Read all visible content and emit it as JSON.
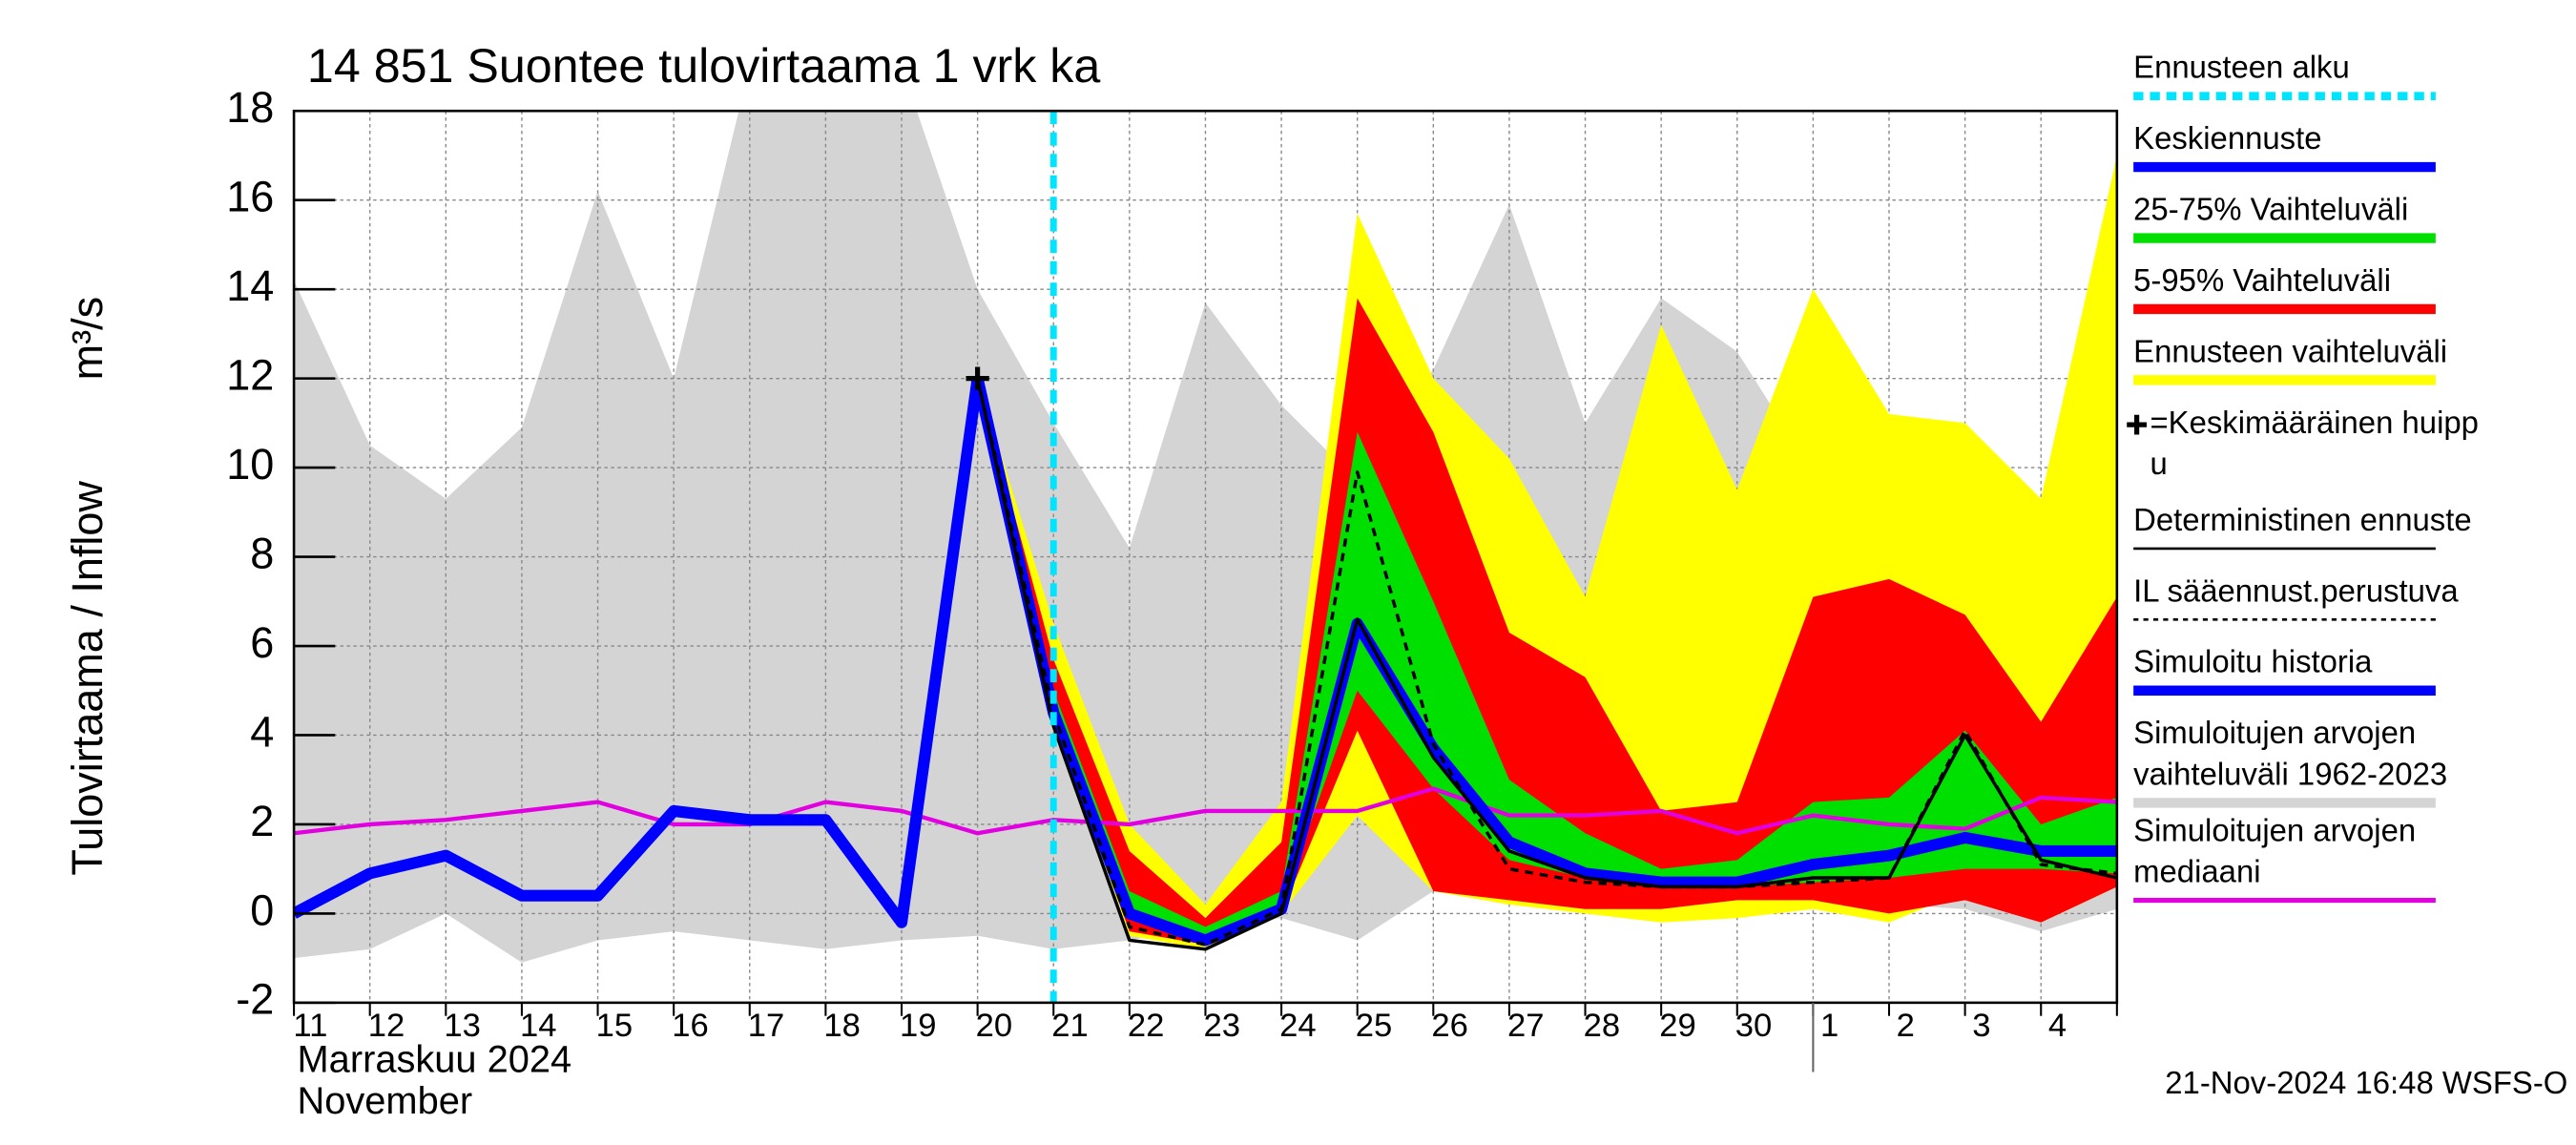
{
  "chart_data": {
    "type": "hydrograph",
    "title": "14 851 Suontee tulovirtaama 1 vrk ka",
    "y_label": "Tulovirtaama / Inflow",
    "y_unit": "m³/s",
    "month_label_fi": "Marraskuu 2024",
    "month_label_en": "November",
    "timestamp": "21-Nov-2024 16:48 WSFS-O",
    "categories": [
      "11",
      "12",
      "13",
      "14",
      "15",
      "16",
      "17",
      "18",
      "19",
      "20",
      "21",
      "22",
      "23",
      "24",
      "25",
      "26",
      "27",
      "28",
      "29",
      "30",
      "1",
      "2",
      "3",
      "4",
      null
    ],
    "month_break_index": 20,
    "ylim": [
      -2,
      18
    ],
    "yticks": [
      -2,
      0,
      2,
      4,
      6,
      8,
      10,
      12,
      14,
      16,
      18
    ],
    "grid": true,
    "bands": [
      {
        "color": "#d4d4d4",
        "values": [
          14.2,
          10.5,
          9.3,
          10.9,
          16.2,
          12,
          19,
          19,
          19,
          14,
          11,
          8.2,
          13.7,
          11.4,
          9.7,
          12.2,
          15.9,
          11,
          13.8,
          12.6,
          9.9,
          8.4,
          9.9,
          8.8,
          13.6
        ],
        "lower": [
          -1,
          -0.8,
          0,
          -1.1,
          -0.6,
          -0.4,
          -0.6,
          -0.8,
          -0.6,
          -0.5,
          -0.8,
          -0.6,
          -0.3,
          -0.1,
          -0.6,
          0.5,
          0.2,
          0.1,
          0.1,
          0.1,
          0.2,
          0.2,
          0.1,
          -0.4,
          0.1
        ]
      },
      {
        "color": "#ffff00",
        "values": [
          null,
          null,
          null,
          null,
          null,
          null,
          null,
          null,
          null,
          12,
          6.5,
          2,
          0.2,
          2.5,
          15.7,
          12,
          10.2,
          7.1,
          13.2,
          9.5,
          14,
          11.2,
          11,
          9.3,
          17
        ],
        "lower": [
          null,
          null,
          null,
          null,
          null,
          null,
          null,
          null,
          null,
          12,
          4.3,
          -0.5,
          -0.8,
          0,
          2.2,
          0.5,
          0.2,
          0,
          -0.2,
          -0.1,
          0.1,
          -0.2,
          0.5,
          -0.2,
          0.6
        ]
      },
      {
        "color": "#ff0000",
        "values": [
          null,
          null,
          null,
          null,
          null,
          null,
          null,
          null,
          null,
          12,
          5.7,
          1.4,
          -0.1,
          1.6,
          13.8,
          10.8,
          6.3,
          5.3,
          2.3,
          2.5,
          7.1,
          7.5,
          6.7,
          4.3,
          7.1
        ],
        "lower": [
          null,
          null,
          null,
          null,
          null,
          null,
          null,
          null,
          null,
          12,
          4.3,
          -0.4,
          -0.7,
          0,
          4.1,
          0.5,
          0.3,
          0.1,
          0.1,
          0.3,
          0.3,
          0,
          0.3,
          -0.2,
          0.6
        ]
      },
      {
        "color": "#00e000",
        "values": [
          null,
          null,
          null,
          null,
          null,
          null,
          null,
          null,
          null,
          12,
          5,
          0.5,
          -0.3,
          0.5,
          10.8,
          7,
          3,
          1.8,
          1,
          1.2,
          2.5,
          2.6,
          4.1,
          2,
          2.6
        ],
        "lower": [
          null,
          null,
          null,
          null,
          null,
          null,
          null,
          null,
          null,
          12,
          4.5,
          -0.1,
          -0.5,
          0.2,
          5,
          2.8,
          1.2,
          0.8,
          0.6,
          0.6,
          0.7,
          0.8,
          1,
          1,
          0.9
        ]
      }
    ],
    "lines": [
      {
        "color": "#e000e0",
        "width": 2.5,
        "dash": "none",
        "values": [
          1.8,
          2,
          2.1,
          2.3,
          2.5,
          2,
          2,
          2.5,
          2.3,
          1.8,
          2.1,
          2,
          2.3,
          2.3,
          2.3,
          2.8,
          2.2,
          2.2,
          2.3,
          1.8,
          2.2,
          2,
          1.9,
          2.6,
          2.5
        ]
      },
      {
        "color": "#0000ff",
        "width": 7,
        "dash": "none",
        "values": [
          0,
          0.9,
          1.3,
          0.4,
          0.4,
          2.3,
          2.1,
          2.1,
          -0.2,
          12,
          null,
          null,
          null,
          null,
          null,
          null,
          null,
          null,
          null,
          null,
          null,
          null,
          null,
          null,
          null
        ]
      },
      {
        "color": "#0000ff",
        "width": 7,
        "dash": "none",
        "values": [
          null,
          null,
          null,
          null,
          null,
          null,
          null,
          null,
          null,
          12,
          4.5,
          0,
          -0.6,
          0.1,
          6.5,
          3.7,
          1.6,
          0.9,
          0.7,
          0.7,
          1.1,
          1.3,
          1.7,
          1.4,
          1.4
        ]
      },
      {
        "color": "#000000",
        "width": 2,
        "dash": "none",
        "values": [
          null,
          null,
          null,
          null,
          null,
          null,
          null,
          null,
          null,
          12,
          4.2,
          -0.6,
          -0.8,
          0,
          6.6,
          3.5,
          1.4,
          0.8,
          0.6,
          0.6,
          0.8,
          0.8,
          4,
          1.2,
          0.8
        ]
      },
      {
        "color": "#000000",
        "width": 2,
        "dash": "5 4",
        "values": [
          null,
          null,
          null,
          null,
          null,
          null,
          null,
          null,
          null,
          12,
          4.5,
          -0.3,
          -0.7,
          0.1,
          9.9,
          3.8,
          1,
          0.7,
          0.6,
          0.6,
          0.7,
          0.8,
          4.1,
          1.1,
          0.9
        ]
      }
    ],
    "peak": {
      "index": 9,
      "value": 12
    },
    "forecast_start": {
      "index": 10,
      "color": "#00e5ff"
    },
    "legend": [
      {
        "lines": [
          "Ennusteen alku"
        ],
        "color": "#00e5ff",
        "style": "dashed"
      },
      {
        "lines": [
          "Keskiennuste"
        ],
        "color": "#0000ff",
        "style": "thick"
      },
      {
        "lines": [
          "25-75% Vaihteluväli"
        ],
        "color": "#00e000",
        "style": "thick"
      },
      {
        "lines": [
          "5-95% Vaihteluväli"
        ],
        "color": "#ff0000",
        "style": "thick"
      },
      {
        "lines": [
          "Ennusteen vaihteluväli"
        ],
        "color": "#ffff00",
        "style": "thick"
      },
      {
        "lines": [
          "=Keskimääräinen huipp",
          "u"
        ],
        "color": "#000000",
        "style": "peak"
      },
      {
        "lines": [
          "Deterministinen ennuste"
        ],
        "color": "#000000",
        "style": "thin"
      },
      {
        "lines": [
          "IL sääennust.perustuva"
        ],
        "color": "#000000",
        "style": "dotted"
      },
      {
        "lines": [
          "Simuloitu historia"
        ],
        "color": "#0000ff",
        "style": "thick"
      },
      {
        "lines": [
          "Simuloitujen arvojen",
          "vaihteluväli 1962-2023"
        ],
        "color": "#d4d4d4",
        "style": "thick"
      },
      {
        "lines": [
          "Simuloitujen arvojen",
          "mediaani"
        ],
        "color": "#e000e0",
        "style": "medium"
      }
    ]
  }
}
